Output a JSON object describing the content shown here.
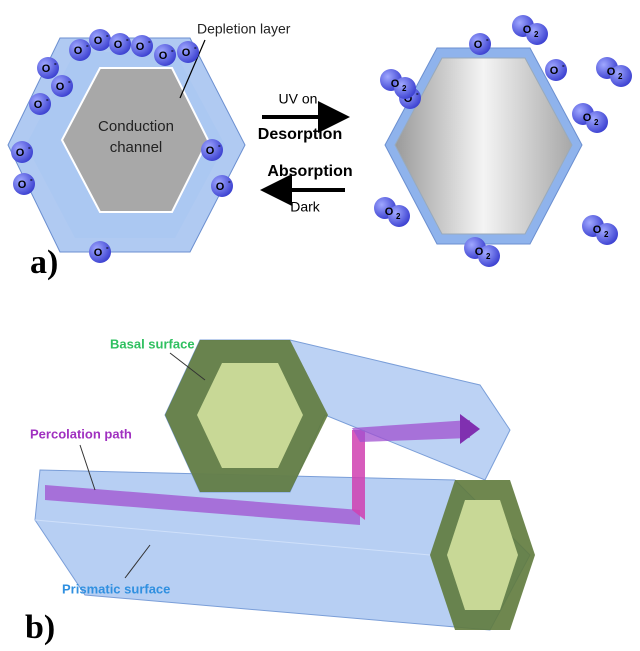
{
  "panel_a": {
    "label": "a)",
    "depletion_layer": "Depletion layer",
    "conduction": "Conduction",
    "channel": "channel",
    "uv_on": "UV on",
    "desorption": "Desorption",
    "absorption": "Absorption",
    "dark": "Dark",
    "ion": {
      "symbol": "O",
      "charge": "-"
    },
    "gas": {
      "symbol": "O",
      "subscript": "2"
    }
  },
  "panel_b": {
    "label": "b)",
    "basal_surface": "Basal surface",
    "percolation_path": "Percolation path",
    "prismatic_surface": "Prismatic surface"
  }
}
